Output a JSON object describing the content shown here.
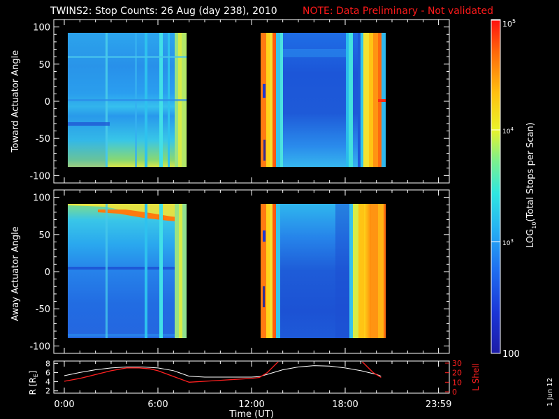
{
  "title": "TWINS2: Stop Counts: 26 Aug (day 238), 2010",
  "note": "NOTE: Data Preliminary - Not validated",
  "date_stamp": "1 Jun 12",
  "colors": {
    "background": "#000000",
    "text": "#ffffff",
    "note": "#ff1a1a",
    "r_line": "#ffffff",
    "l_shell_line": "#ff2020"
  },
  "chart_data": [
    {
      "type": "heatmap",
      "name": "toward",
      "ylabel": "Toward Actuator Angle",
      "ylim": [
        -110,
        110
      ],
      "yticks": [
        100,
        50,
        0,
        -50,
        -100
      ],
      "y_range_data": [
        -90,
        90
      ],
      "xlim": [
        0,
        24
      ],
      "data_intervals_hours": [
        [
          0.25,
          8.0
        ],
        [
          12.5,
          20.2
        ]
      ],
      "bright_columns_hours": [
        7.4,
        7.6,
        7.8,
        12.6,
        12.9,
        13.2,
        18.0,
        18.3,
        19.0,
        19.6,
        20.0
      ]
    },
    {
      "type": "heatmap",
      "name": "away",
      "ylabel": "Away Actuator Angle",
      "ylim": [
        -110,
        110
      ],
      "yticks": [
        100,
        50,
        0,
        -50,
        -100
      ],
      "y_range_data": [
        -90,
        90
      ],
      "xlim": [
        0,
        24
      ],
      "data_intervals_hours": [
        [
          0.25,
          8.0
        ],
        [
          12.5,
          20.2
        ]
      ],
      "band_angle_deg": 78
    },
    {
      "type": "line",
      "name": "orbit",
      "ylabel_left": "R [R",
      "ylabel_left_sub": "E",
      "ylabel_left_end": "]",
      "ylabel_right": "L Shell",
      "xlabel": "Time (UT)",
      "xlim": [
        0,
        24
      ],
      "left_ylim": [
        1.5,
        8.5
      ],
      "left_yticks": [
        2,
        4,
        6,
        8
      ],
      "right_ylim": [
        0,
        30
      ],
      "right_yticks": [
        0,
        10,
        20,
        30
      ],
      "xticks": [
        0,
        6,
        12,
        18,
        23.983
      ],
      "xtick_labels": [
        "0:00",
        "6:00",
        "12:00",
        "18:00",
        "23:59"
      ],
      "series": [
        {
          "key": "R",
          "x": [
            0.0,
            1.0,
            2.0,
            3.0,
            4.0,
            5.0,
            6.0,
            7.0,
            8.0,
            9.0,
            10.0,
            11.0,
            12.0,
            12.5,
            13.0,
            14.0,
            15.0,
            16.0,
            17.0,
            18.0,
            19.0,
            20.0,
            20.3
          ],
          "values": [
            5.3,
            6.0,
            6.6,
            7.0,
            7.2,
            7.2,
            7.0,
            6.4,
            5.2,
            5.0,
            5.0,
            5.0,
            5.0,
            5.1,
            5.6,
            6.6,
            7.2,
            7.5,
            7.4,
            7.0,
            6.4,
            5.6,
            5.2
          ]
        },
        {
          "key": "L",
          "x": [
            0.0,
            1.0,
            2.0,
            3.0,
            4.0,
            4.8,
            5.5,
            6.0,
            7.0,
            8.0,
            9.0,
            10.0,
            11.0,
            12.0,
            12.5,
            13.0,
            13.8,
            19.0,
            19.8,
            20.3
          ],
          "values": [
            11,
            14,
            18,
            22,
            25,
            25,
            24,
            22,
            16,
            10,
            11,
            12,
            13,
            14,
            15,
            20,
            33,
            33,
            20,
            15
          ]
        }
      ]
    },
    {
      "type": "heatmap",
      "name": "colorbar",
      "ylabel": "LOG",
      "ylabel_sub": "10",
      "ylabel_rest": "(Total Stops per Scan)",
      "range": [
        100,
        100000
      ],
      "scale": "log",
      "tick_labels": [
        "100",
        "10",
        "10",
        "10"
      ],
      "tick_exponents": [
        "",
        "3",
        "4",
        "5"
      ]
    }
  ]
}
